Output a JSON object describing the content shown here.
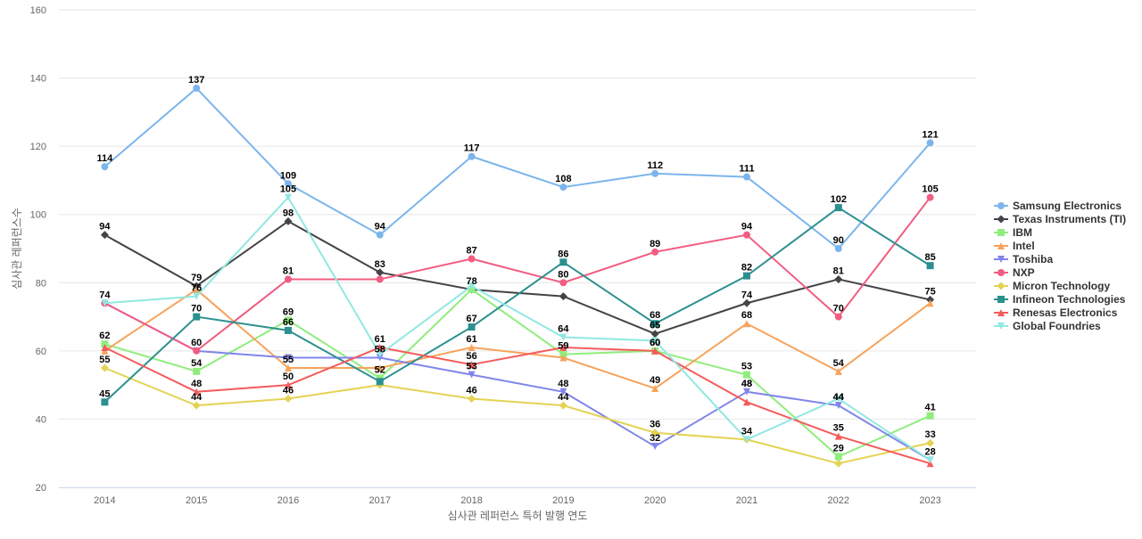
{
  "chart_data": {
    "type": "line",
    "title": "",
    "xlabel": "심사관 레퍼런스 특허 발행 연도",
    "ylabel": "심사관 레퍼런스수",
    "categories": [
      "2014",
      "2015",
      "2016",
      "2017",
      "2018",
      "2019",
      "2020",
      "2021",
      "2022",
      "2023"
    ],
    "ylim": [
      20,
      160
    ],
    "yticks": [
      20,
      40,
      60,
      80,
      100,
      120,
      140,
      160
    ],
    "grid": true,
    "legend_position": "right",
    "series": [
      {
        "name": "Samsung Electronics",
        "color": "#7cb5ec",
        "marker": "circle",
        "values": [
          114,
          137,
          109,
          94,
          117,
          108,
          112,
          111,
          90,
          121
        ]
      },
      {
        "name": "Texas Instruments (TI)",
        "color": "#434348",
        "marker": "diamond",
        "values": [
          94,
          79,
          98,
          83,
          78,
          76,
          65,
          74,
          81,
          75
        ]
      },
      {
        "name": "IBM",
        "color": "#90ed7d",
        "marker": "square",
        "values": [
          62,
          54,
          69,
          52,
          78,
          59,
          60,
          53,
          29,
          41
        ]
      },
      {
        "name": "Intel",
        "color": "#f7a35c",
        "marker": "triangle",
        "values": [
          60,
          78,
          55,
          55,
          61,
          58,
          49,
          68,
          54,
          74
        ]
      },
      {
        "name": "Toshiba",
        "color": "#8085e9",
        "marker": "triangle-down",
        "values": [
          74,
          60,
          58,
          58,
          53,
          48,
          32,
          48,
          44,
          28
        ]
      },
      {
        "name": "NXP",
        "color": "#f15c80",
        "marker": "circle",
        "values": [
          74,
          60,
          81,
          81,
          87,
          80,
          89,
          94,
          70,
          105
        ]
      },
      {
        "name": "Micron Technology",
        "color": "#e4d354",
        "marker": "diamond",
        "values": [
          55,
          44,
          46,
          50,
          46,
          44,
          36,
          34,
          27,
          33
        ]
      },
      {
        "name": "Infineon Technologies",
        "color": "#2b908f",
        "marker": "square",
        "values": [
          45,
          70,
          66,
          51,
          67,
          86,
          68,
          82,
          102,
          85
        ]
      },
      {
        "name": "Renesas Electronics",
        "color": "#f45b5b",
        "marker": "triangle",
        "values": [
          61,
          48,
          50,
          61,
          56,
          61,
          60,
          45,
          35,
          27
        ]
      },
      {
        "name": "Global Foundries",
        "color": "#91e8e1",
        "marker": "triangle-down",
        "values": [
          74,
          76,
          105,
          59,
          79,
          64,
          63,
          34,
          46,
          28
        ]
      }
    ],
    "data_labels": [
      {
        "x": "2014",
        "y": 114,
        "text": "114"
      },
      {
        "x": "2015",
        "y": 137,
        "text": "137"
      },
      {
        "x": "2016",
        "y": 109,
        "text": "109"
      },
      {
        "x": "2017",
        "y": 94,
        "text": "94"
      },
      {
        "x": "2018",
        "y": 117,
        "text": "117"
      },
      {
        "x": "2019",
        "y": 108,
        "text": "108"
      },
      {
        "x": "2020",
        "y": 112,
        "text": "112"
      },
      {
        "x": "2021",
        "y": 111,
        "text": "111"
      },
      {
        "x": "2022",
        "y": 90,
        "text": "90"
      },
      {
        "x": "2023",
        "y": 121,
        "text": "121"
      },
      {
        "x": "2014",
        "y": 94,
        "text": "94"
      },
      {
        "x": "2015",
        "y": 79,
        "text": "79"
      },
      {
        "x": "2016",
        "y": 98,
        "text": "98"
      },
      {
        "x": "2017",
        "y": 83,
        "text": "83"
      },
      {
        "x": "2020",
        "y": 65,
        "text": "65"
      },
      {
        "x": "2021",
        "y": 74,
        "text": "74"
      },
      {
        "x": "2022",
        "y": 81,
        "text": "81"
      },
      {
        "x": "2023",
        "y": 75,
        "text": "75"
      },
      {
        "x": "2014",
        "y": 62,
        "text": "62"
      },
      {
        "x": "2015",
        "y": 54,
        "text": "54"
      },
      {
        "x": "2016",
        "y": 69,
        "text": "69"
      },
      {
        "x": "2017",
        "y": 52,
        "text": "52"
      },
      {
        "x": "2018",
        "y": 78,
        "text": "78"
      },
      {
        "x": "2019",
        "y": 59,
        "text": "59"
      },
      {
        "x": "2020",
        "y": 60,
        "text": "60"
      },
      {
        "x": "2021",
        "y": 53,
        "text": "53"
      },
      {
        "x": "2022",
        "y": 29,
        "text": "29"
      },
      {
        "x": "2023",
        "y": 41,
        "text": "41"
      },
      {
        "x": "2015",
        "y": 76,
        "text": "76"
      },
      {
        "x": "2016",
        "y": 55,
        "text": "55"
      },
      {
        "x": "2018",
        "y": 61,
        "text": "61"
      },
      {
        "x": "2020",
        "y": 49,
        "text": "49"
      },
      {
        "x": "2021",
        "y": 68,
        "text": "68"
      },
      {
        "x": "2022",
        "y": 54,
        "text": "54"
      },
      {
        "x": "2015",
        "y": 60,
        "text": "60"
      },
      {
        "x": "2017",
        "y": 58,
        "text": "58"
      },
      {
        "x": "2018",
        "y": 53,
        "text": "53"
      },
      {
        "x": "2019",
        "y": 48,
        "text": "48"
      },
      {
        "x": "2020",
        "y": 32,
        "text": "32"
      },
      {
        "x": "2021",
        "y": 48,
        "text": "48"
      },
      {
        "x": "2022",
        "y": 44,
        "text": "44"
      },
      {
        "x": "2023",
        "y": 28,
        "text": "28"
      },
      {
        "x": "2014",
        "y": 74,
        "text": "74"
      },
      {
        "x": "2016",
        "y": 81,
        "text": "81"
      },
      {
        "x": "2018",
        "y": 87,
        "text": "87"
      },
      {
        "x": "2019",
        "y": 80,
        "text": "80"
      },
      {
        "x": "2020",
        "y": 89,
        "text": "89"
      },
      {
        "x": "2021",
        "y": 94,
        "text": "94"
      },
      {
        "x": "2022",
        "y": 70,
        "text": "70"
      },
      {
        "x": "2023",
        "y": 105,
        "text": "105"
      },
      {
        "x": "2014",
        "y": 55,
        "text": "55"
      },
      {
        "x": "2015",
        "y": 44,
        "text": "44"
      },
      {
        "x": "2016",
        "y": 46,
        "text": "46"
      },
      {
        "x": "2018",
        "y": 46,
        "text": "46"
      },
      {
        "x": "2019",
        "y": 44,
        "text": "44"
      },
      {
        "x": "2020",
        "y": 36,
        "text": "36"
      },
      {
        "x": "2021",
        "y": 34,
        "text": "34"
      },
      {
        "x": "2023",
        "y": 33,
        "text": "33"
      },
      {
        "x": "2014",
        "y": 45,
        "text": "45"
      },
      {
        "x": "2015",
        "y": 70,
        "text": "70"
      },
      {
        "x": "2016",
        "y": 66,
        "text": "66"
      },
      {
        "x": "2018",
        "y": 67,
        "text": "67"
      },
      {
        "x": "2019",
        "y": 86,
        "text": "86"
      },
      {
        "x": "2020",
        "y": 68,
        "text": "68"
      },
      {
        "x": "2021",
        "y": 82,
        "text": "82"
      },
      {
        "x": "2022",
        "y": 102,
        "text": "102"
      },
      {
        "x": "2023",
        "y": 85,
        "text": "85"
      },
      {
        "x": "2015",
        "y": 48,
        "text": "48"
      },
      {
        "x": "2016",
        "y": 50,
        "text": "50"
      },
      {
        "x": "2017",
        "y": 61,
        "text": "61"
      },
      {
        "x": "2018",
        "y": 56,
        "text": "56"
      },
      {
        "x": "2021",
        "y": 48,
        "text": "48"
      },
      {
        "x": "2022",
        "y": 35,
        "text": "35"
      },
      {
        "x": "2016",
        "y": 105,
        "text": "105"
      },
      {
        "x": "2019",
        "y": 64,
        "text": "64"
      },
      {
        "x": "2020",
        "y": 60,
        "text": "60"
      },
      {
        "x": "2022",
        "y": 44,
        "text": "44"
      }
    ]
  }
}
